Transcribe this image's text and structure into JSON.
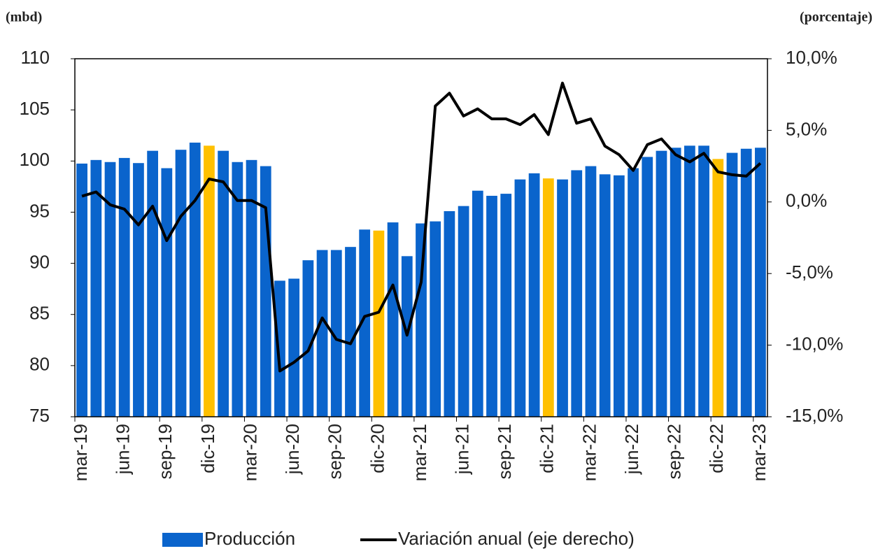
{
  "chart_data": {
    "type": "bar_line",
    "y_label": "(mbd)",
    "y2_label": "(porcentaje)",
    "categories": [
      "mar-19",
      null,
      null,
      "jun-19",
      null,
      null,
      "sep-19",
      null,
      null,
      "dic-19",
      null,
      null,
      "mar-20",
      null,
      null,
      "jun-20",
      null,
      null,
      "sep-20",
      null,
      null,
      "dic-20",
      null,
      null,
      "mar-21",
      null,
      null,
      "jun-21",
      null,
      null,
      "sep-21",
      null,
      null,
      "dic-21",
      null,
      null,
      "mar-22",
      null,
      null,
      "jun-22",
      null,
      null,
      "sep-22",
      null,
      null,
      "dic-22",
      null,
      null,
      "mar-23"
    ],
    "series": [
      {
        "name": "Producción",
        "type": "bar",
        "color": "#0a64cc",
        "colors": [
          "#0a64cc",
          "#0a64cc",
          "#0a64cc",
          "#0a64cc",
          "#0a64cc",
          "#0a64cc",
          "#0a64cc",
          "#0a64cc",
          "#0a64cc",
          "#ffc000",
          "#0a64cc",
          "#0a64cc",
          "#0a64cc",
          "#0a64cc",
          "#0a64cc",
          "#0a64cc",
          "#0a64cc",
          "#0a64cc",
          "#0a64cc",
          "#0a64cc",
          "#0a64cc",
          "#ffc000",
          "#0a64cc",
          "#0a64cc",
          "#0a64cc",
          "#0a64cc",
          "#0a64cc",
          "#0a64cc",
          "#0a64cc",
          "#0a64cc",
          "#0a64cc",
          "#0a64cc",
          "#0a64cc",
          "#ffc000",
          "#0a64cc",
          "#0a64cc",
          "#0a64cc",
          "#0a64cc",
          "#0a64cc",
          "#0a64cc",
          "#0a64cc",
          "#0a64cc",
          "#0a64cc",
          "#0a64cc",
          "#0a64cc",
          "#ffc000",
          "#0a64cc",
          "#0a64cc",
          "#0a64cc"
        ],
        "values": [
          99.75,
          100.1,
          99.9,
          100.3,
          99.8,
          101.0,
          99.3,
          101.1,
          101.8,
          101.5,
          101.0,
          99.9,
          100.1,
          99.5,
          88.3,
          88.5,
          90.3,
          91.3,
          91.3,
          91.6,
          93.3,
          93.2,
          94.0,
          90.7,
          93.9,
          94.1,
          95.1,
          95.6,
          97.1,
          96.6,
          96.8,
          98.2,
          98.8,
          98.3,
          98.2,
          99.1,
          99.5,
          98.7,
          98.6,
          99.3,
          100.4,
          101.0,
          101.3,
          101.5,
          101.5,
          100.2,
          100.8,
          101.2,
          101.3
        ]
      },
      {
        "name": "Variación anual (eje derecho)",
        "type": "line",
        "axis": "y2",
        "color": "#000000",
        "values": [
          0.4,
          0.7,
          -0.2,
          -0.5,
          -1.6,
          -0.3,
          -2.7,
          -1.0,
          0.1,
          1.6,
          1.4,
          0.1,
          0.1,
          -0.4,
          -11.8,
          -11.2,
          -10.4,
          -8.1,
          -9.6,
          -9.9,
          -8.0,
          -7.7,
          -5.8,
          -9.3,
          -5.6,
          6.7,
          7.6,
          6.0,
          6.5,
          5.8,
          5.8,
          5.4,
          6.1,
          4.7,
          8.3,
          5.5,
          5.8,
          3.9,
          3.3,
          2.2,
          4.0,
          4.4,
          3.3,
          2.8,
          3.4,
          2.1,
          1.9,
          1.8,
          2.7
        ]
      }
    ],
    "ylim": [
      75,
      110
    ],
    "yticks": [
      75,
      80,
      85,
      90,
      95,
      100,
      105,
      110
    ],
    "y2lim": [
      -15,
      10
    ],
    "y2ticks": [
      {
        "value": -15,
        "label": "-15,0%"
      },
      {
        "value": -10,
        "label": "-10,0%"
      },
      {
        "value": -5,
        "label": "-5,0%"
      },
      {
        "value": 0,
        "label": "0,0%"
      },
      {
        "value": 5,
        "label": "5,0%"
      },
      {
        "value": 10,
        "label": "10,0%"
      }
    ],
    "legend": "bottom"
  }
}
